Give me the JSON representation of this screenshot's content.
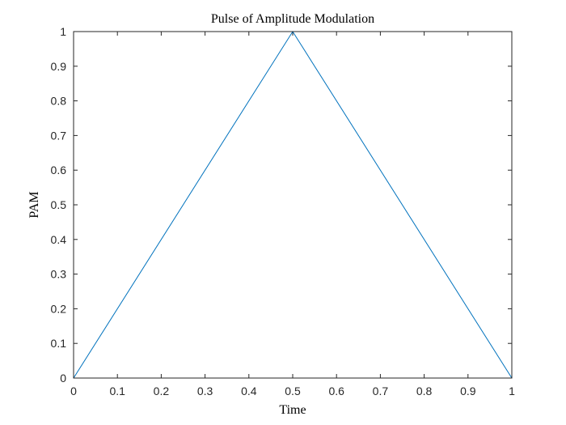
{
  "chart_data": {
    "type": "line",
    "title": "Pulse of Amplitude Modulation",
    "xlabel": "Time",
    "ylabel": "PAM",
    "xlim": [
      0,
      1
    ],
    "ylim": [
      0,
      1
    ],
    "x_ticks": [
      "0",
      "0.1",
      "0.2",
      "0.3",
      "0.4",
      "0.5",
      "0.6",
      "0.7",
      "0.8",
      "0.9",
      "1"
    ],
    "y_ticks": [
      "0",
      "0.1",
      "0.2",
      "0.3",
      "0.4",
      "0.5",
      "0.6",
      "0.7",
      "0.8",
      "0.9",
      "1"
    ],
    "grid": false,
    "series": [
      {
        "color": "#0072bd",
        "x": [
          0,
          0.5,
          1
        ],
        "y": [
          0,
          1,
          0
        ]
      }
    ]
  }
}
